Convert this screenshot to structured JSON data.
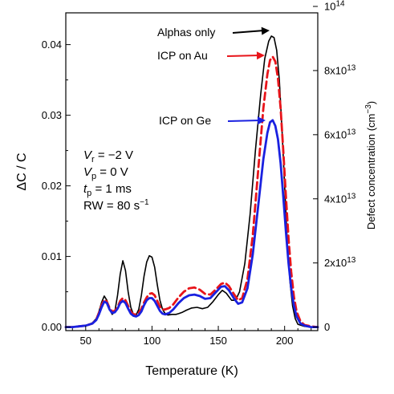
{
  "chart_data": {
    "type": "line",
    "xlabel": "Temperature (K)",
    "ylabel": "ΔC / C",
    "y2label": "Defect concentration (cm",
    "y2label_sup": "−3",
    "y2label_end": ")",
    "xlim": [
      35,
      225
    ],
    "ylim": [
      -0.0005,
      0.0445
    ],
    "y2lim": [
      -1100000000000.0,
      98000000000000.0
    ],
    "x_ticks": [
      50,
      100,
      150,
      200
    ],
    "y_ticks": [
      0.0,
      0.01,
      0.02,
      0.03,
      0.04
    ],
    "y_tick_labels": [
      "0.00",
      "0.01",
      "0.02",
      "0.03",
      "0.04"
    ],
    "y2_ticks": [
      {
        "value": 0,
        "mant": "0",
        "exp": ""
      },
      {
        "value": 20000000000000.0,
        "mant": "2x10",
        "exp": "13"
      },
      {
        "value": 40000000000000.0,
        "mant": "4x10",
        "exp": "13"
      },
      {
        "value": 60000000000000.0,
        "mant": "6x10",
        "exp": "13"
      },
      {
        "value": 80000000000000.0,
        "mant": "8x10",
        "exp": "13"
      },
      {
        "value": 100000000000000.0,
        "mant": "10",
        "exp": "14"
      }
    ],
    "grid": false,
    "series": [
      {
        "name": "Alphas only",
        "color": "#000000",
        "dash": "solid",
        "x": [
          35,
          40,
          45,
          50,
          55,
          58,
          60,
          62,
          64,
          66,
          68,
          70,
          72,
          74,
          76,
          78,
          80,
          82,
          84,
          86,
          88,
          90,
          92,
          94,
          96,
          98,
          100,
          102,
          104,
          106,
          108,
          110,
          112,
          115,
          118,
          120,
          123,
          126,
          130,
          134,
          138,
          142,
          146,
          150,
          153,
          156,
          160,
          163,
          166,
          170,
          174,
          178,
          182,
          185,
          188,
          190,
          192,
          194,
          196,
          198,
          200,
          202,
          204,
          206,
          208,
          210,
          215,
          220,
          225
        ],
        "y": [
          0.0,
          0.0,
          0.0001,
          0.0002,
          0.0006,
          0.0012,
          0.0022,
          0.0035,
          0.0044,
          0.0038,
          0.0025,
          0.0018,
          0.0022,
          0.0045,
          0.0075,
          0.0094,
          0.008,
          0.005,
          0.0028,
          0.0018,
          0.0017,
          0.0025,
          0.0045,
          0.0072,
          0.0092,
          0.0101,
          0.0099,
          0.0085,
          0.006,
          0.0038,
          0.0025,
          0.0019,
          0.0017,
          0.0018,
          0.0018,
          0.0019,
          0.0021,
          0.0024,
          0.0027,
          0.0028,
          0.0026,
          0.0028,
          0.0036,
          0.0046,
          0.0052,
          0.0048,
          0.0038,
          0.0038,
          0.005,
          0.009,
          0.016,
          0.025,
          0.033,
          0.038,
          0.0405,
          0.0412,
          0.041,
          0.0392,
          0.035,
          0.028,
          0.02,
          0.012,
          0.0065,
          0.003,
          0.0012,
          0.0004,
          0.0001,
          0.0,
          0.0
        ]
      },
      {
        "name": "ICP on Au",
        "color": "#e8141a",
        "dash": "dashed",
        "x": [
          35,
          40,
          45,
          50,
          55,
          58,
          60,
          62,
          64,
          66,
          68,
          70,
          72,
          74,
          76,
          78,
          80,
          82,
          84,
          86,
          88,
          90,
          92,
          94,
          96,
          98,
          100,
          102,
          104,
          106,
          108,
          110,
          113,
          116,
          120,
          124,
          128,
          132,
          136,
          140,
          144,
          148,
          152,
          155,
          158,
          162,
          165,
          168,
          172,
          176,
          180,
          184,
          187,
          189,
          191,
          193,
          195,
          197,
          199,
          201,
          203,
          205,
          207,
          209,
          212,
          215,
          220,
          225
        ],
        "y": [
          0.0,
          0.0,
          0.0001,
          0.0002,
          0.0005,
          0.0011,
          0.002,
          0.0031,
          0.0039,
          0.0036,
          0.0027,
          0.0022,
          0.0023,
          0.0028,
          0.0037,
          0.0041,
          0.0038,
          0.003,
          0.0022,
          0.0018,
          0.0018,
          0.002,
          0.0026,
          0.0035,
          0.0042,
          0.0047,
          0.0048,
          0.0045,
          0.0037,
          0.0029,
          0.0025,
          0.0025,
          0.0027,
          0.0032,
          0.0042,
          0.005,
          0.0055,
          0.0056,
          0.0053,
          0.0047,
          0.0046,
          0.0053,
          0.0061,
          0.0063,
          0.0058,
          0.0046,
          0.0038,
          0.0041,
          0.0068,
          0.013,
          0.022,
          0.031,
          0.0358,
          0.0378,
          0.0383,
          0.0376,
          0.0352,
          0.031,
          0.025,
          0.0185,
          0.0125,
          0.0078,
          0.0043,
          0.0022,
          0.0008,
          0.0003,
          0.0001,
          0.0
        ]
      },
      {
        "name": "ICP on Ge",
        "color": "#1a21e0",
        "dash": "solid",
        "x": [
          35,
          40,
          45,
          50,
          55,
          58,
          60,
          62,
          64,
          66,
          68,
          70,
          72,
          74,
          76,
          78,
          80,
          82,
          84,
          86,
          88,
          90,
          92,
          94,
          96,
          98,
          100,
          102,
          104,
          106,
          108,
          110,
          113,
          116,
          120,
          124,
          128,
          132,
          136,
          140,
          144,
          148,
          152,
          155,
          158,
          162,
          165,
          168,
          172,
          176,
          180,
          184,
          187,
          189,
          191,
          193,
          195,
          197,
          199,
          201,
          203,
          205,
          207,
          209,
          212,
          215,
          220,
          225
        ],
        "y": [
          0.0,
          0.0,
          0.0001,
          0.0002,
          0.0005,
          0.001,
          0.0018,
          0.0028,
          0.0036,
          0.0034,
          0.0025,
          0.002,
          0.0021,
          0.0026,
          0.0034,
          0.0037,
          0.0034,
          0.0026,
          0.0019,
          0.0016,
          0.0015,
          0.0017,
          0.0022,
          0.0031,
          0.0038,
          0.0041,
          0.0041,
          0.0037,
          0.003,
          0.0023,
          0.0019,
          0.0018,
          0.002,
          0.0025,
          0.0034,
          0.0041,
          0.0045,
          0.0046,
          0.0044,
          0.004,
          0.0041,
          0.0049,
          0.0057,
          0.0058,
          0.0052,
          0.004,
          0.0033,
          0.0035,
          0.0055,
          0.0103,
          0.017,
          0.0238,
          0.0275,
          0.029,
          0.0293,
          0.0285,
          0.0266,
          0.0232,
          0.0185,
          0.0135,
          0.009,
          0.0055,
          0.003,
          0.0015,
          0.0005,
          0.0002,
          0.0,
          0.0
        ]
      }
    ],
    "annotations": [
      {
        "text": "Alphas only",
        "color": "#000000",
        "series": 0
      },
      {
        "text": "ICP on Au",
        "color": "#e8141a",
        "series": 1
      },
      {
        "text": "ICP on Ge",
        "color": "#1a21e0",
        "series": 2
      }
    ],
    "conditions": [
      {
        "sym": "V",
        "sub": "r",
        "rest": " = −2 V",
        "sup": ""
      },
      {
        "sym": "V",
        "sub": "p",
        "rest": " = 0 V",
        "sup": ""
      },
      {
        "sym": "t",
        "sub": "p",
        "rest": " = 1 ms",
        "sup": ""
      },
      {
        "sym": "",
        "sub": "",
        "rest": "RW = 80 s",
        "sup": "−1"
      }
    ]
  }
}
